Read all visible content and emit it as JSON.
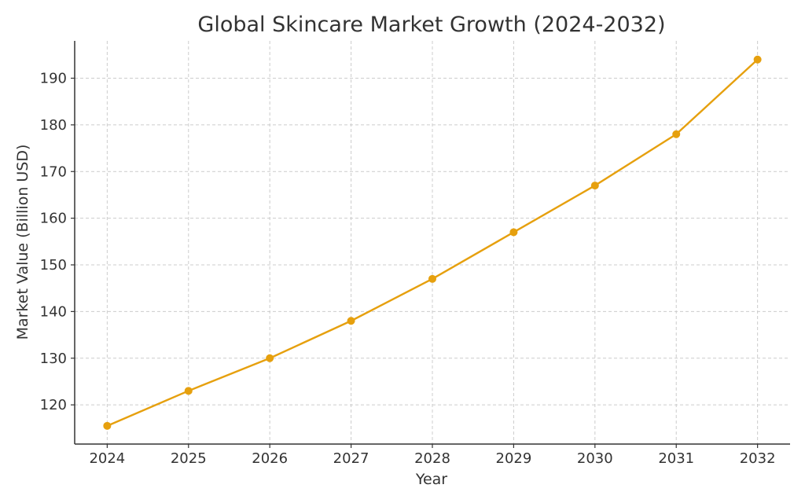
{
  "chart_data": {
    "type": "line",
    "title": "Global Skincare Market Growth (2024-2032)",
    "xlabel": "Year",
    "ylabel": "Market Value (Billion USD)",
    "x": [
      2024,
      2025,
      2026,
      2027,
      2028,
      2029,
      2030,
      2031,
      2032
    ],
    "series": [
      {
        "values": [
          115.5,
          123,
          130,
          138,
          147,
          157,
          167,
          178,
          194
        ],
        "color": "#E6A00E"
      }
    ],
    "xlim": [
      2023.6,
      2032.4
    ],
    "ylim": [
      111.6,
      198.0
    ],
    "yticks": [
      120,
      130,
      140,
      150,
      160,
      170,
      180,
      190
    ],
    "xticks": [
      2024,
      2025,
      2026,
      2027,
      2028,
      2029,
      2030,
      2031,
      2032
    ],
    "grid": true,
    "marker": "circle"
  }
}
